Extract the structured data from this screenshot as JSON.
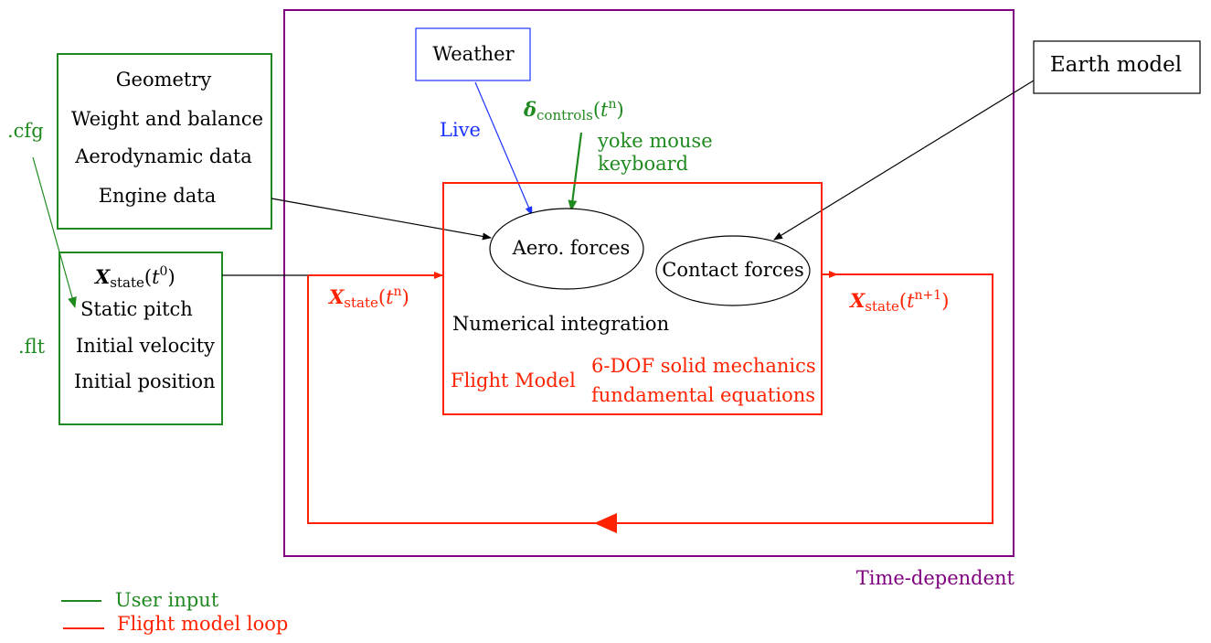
{
  "colors": {
    "green": "#1f8a1f",
    "red": "#ff2200",
    "blue": "#1a33ff",
    "purple": "#800080",
    "black": "#000000"
  },
  "weather": {
    "label": "Weather",
    "link_label": "Live"
  },
  "earth_model": {
    "label": "Earth model"
  },
  "aircraft_config": {
    "items": [
      "Geometry",
      "Weight and balance",
      "Aerodynamic data",
      "Engine data"
    ],
    "file_label": ".cfg"
  },
  "initial_state": {
    "symbol": "X",
    "subscript": "state",
    "time": "t",
    "time_sup": "0",
    "items": [
      "Static pitch",
      "Initial velocity",
      "Initial position"
    ],
    "file_label": ".flt"
  },
  "controls": {
    "symbol": "δ",
    "subscript": "controls",
    "time": "t",
    "time_sup": "n",
    "devices_line1": "yoke mouse",
    "devices_line2": "keyboard"
  },
  "flight_model": {
    "aero_forces": "Aero. forces",
    "contact_forces": "Contact forces",
    "integration": "Numerical integration",
    "title": "Flight Model",
    "equations_line1": "6-DOF solid mechanics",
    "equations_line2": "fundamental equations"
  },
  "loop": {
    "input_state": {
      "symbol": "X",
      "subscript": "state",
      "time": "t",
      "time_sup": "n"
    },
    "output_state": {
      "symbol": "X",
      "subscript": "state",
      "time": "t",
      "time_sup": "n+1"
    }
  },
  "time_dependent_label": "Time-dependent",
  "legend": [
    {
      "label": "User input",
      "color": "#1f8a1f"
    },
    {
      "label": "Flight model loop",
      "color": "#ff2200"
    }
  ]
}
